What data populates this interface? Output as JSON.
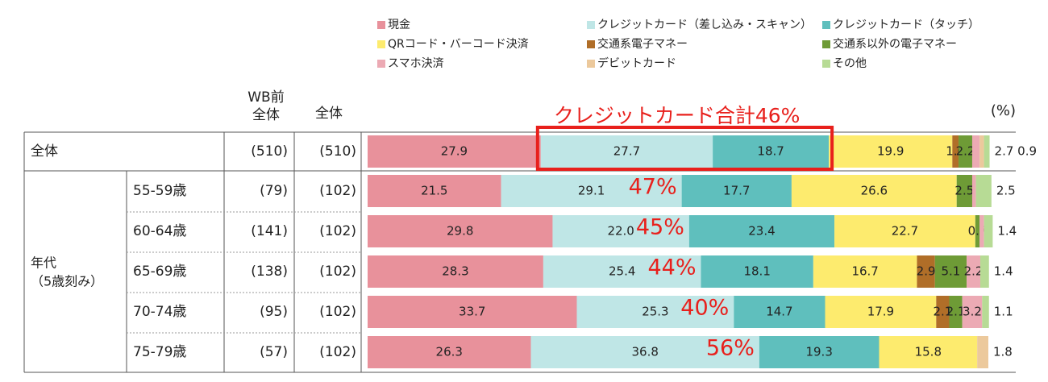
{
  "legend": [
    {
      "label": "現金",
      "color": "#e8919b"
    },
    {
      "label": "クレジットカード（差し込み・スキャン）",
      "color": "#bfe6e6"
    },
    {
      "label": "クレジットカード（タッチ）",
      "color": "#5fbfbd"
    },
    {
      "label": "QRコード・バーコード決済",
      "color": "#fdeb6e"
    },
    {
      "label": "交通系電子マネー",
      "color": "#b06e28"
    },
    {
      "label": "交通系以外の電子マネー",
      "color": "#6e9b36"
    },
    {
      "label": "スマホ決済",
      "color": "#ecaab4"
    },
    {
      "label": "デビットカード",
      "color": "#ecc99c"
    },
    {
      "label": "その他",
      "color": "#b7db95"
    }
  ],
  "headers": {
    "wb_line1": "WB前",
    "wb_line2": "全体",
    "total": "全体",
    "unit": "(%)"
  },
  "group_label_line1": "年代",
  "group_label_line2": "（5歳刻み）",
  "annotation_total": "クレジットカード合計46%",
  "chart_data": {
    "type": "bar",
    "stacked": true,
    "orientation": "horizontal",
    "unit": "%",
    "series_names": [
      "現金",
      "クレジットカード（差し込み・スキャン）",
      "クレジットカード（タッチ）",
      "QRコード・バーコード決済",
      "交通系電子マネー",
      "交通系以外の電子マネー",
      "スマホ決済",
      "デビットカード",
      "その他"
    ],
    "rows": [
      {
        "label": "全体",
        "wb_n": "(510)",
        "n": "(510)",
        "values": [
          27.9,
          27.7,
          18.7,
          19.9,
          1.0,
          2.2,
          1.2,
          0.7,
          0.9
        ],
        "labels": [
          "27.9",
          "27.7",
          "18.7",
          "19.9",
          "1.0",
          "2.2",
          "",
          "",
          ""
        ],
        "tail_label": "2.7 0.9",
        "credit_total": ""
      },
      {
        "label": "55-59歳",
        "wb_n": "(79)",
        "n": "(102)",
        "values": [
          21.5,
          29.1,
          17.7,
          26.6,
          0.0,
          2.5,
          0.6,
          0.0,
          2.5
        ],
        "labels": [
          "21.5",
          "29.1",
          "17.7",
          "26.6",
          "",
          "2.5",
          "",
          "",
          ""
        ],
        "tail_label": "2.5",
        "credit_total": "47%"
      },
      {
        "label": "60-64歳",
        "wb_n": "(141)",
        "n": "(102)",
        "values": [
          29.8,
          22.0,
          23.4,
          22.7,
          0.0,
          0.7,
          0.7,
          0.0,
          1.4
        ],
        "labels": [
          "29.8",
          "22.0",
          "23.4",
          "22.7",
          "",
          "0.7",
          "",
          "",
          ""
        ],
        "tail_label": "1.4",
        "credit_total": "45%"
      },
      {
        "label": "65-69歳",
        "wb_n": "(138)",
        "n": "(102)",
        "values": [
          28.3,
          25.4,
          18.1,
          16.7,
          2.9,
          5.1,
          2.2,
          0.0,
          1.4
        ],
        "labels": [
          "28.3",
          "25.4",
          "18.1",
          "16.7",
          "2.9",
          "5.1",
          "2.2",
          "",
          ""
        ],
        "tail_label": "1.4",
        "credit_total": "44%"
      },
      {
        "label": "70-74歳",
        "wb_n": "(95)",
        "n": "(102)",
        "values": [
          33.7,
          25.3,
          14.7,
          17.9,
          2.1,
          2.1,
          3.2,
          0.0,
          1.1
        ],
        "labels": [
          "33.7",
          "25.3",
          "14.7",
          "17.9",
          "2.1",
          "2.1",
          "3.2",
          "",
          ""
        ],
        "tail_label": "1.1",
        "credit_total": "40%"
      },
      {
        "label": "75-79歳",
        "wb_n": "(57)",
        "n": "(102)",
        "values": [
          26.3,
          36.8,
          19.3,
          15.8,
          0.0,
          0.0,
          0.0,
          1.8,
          0.0
        ],
        "labels": [
          "26.3",
          "36.8",
          "19.3",
          "15.8",
          "",
          "",
          "",
          "",
          ""
        ],
        "tail_label": "1.8",
        "credit_total": "56%"
      }
    ],
    "xlim": [
      0,
      100
    ]
  }
}
